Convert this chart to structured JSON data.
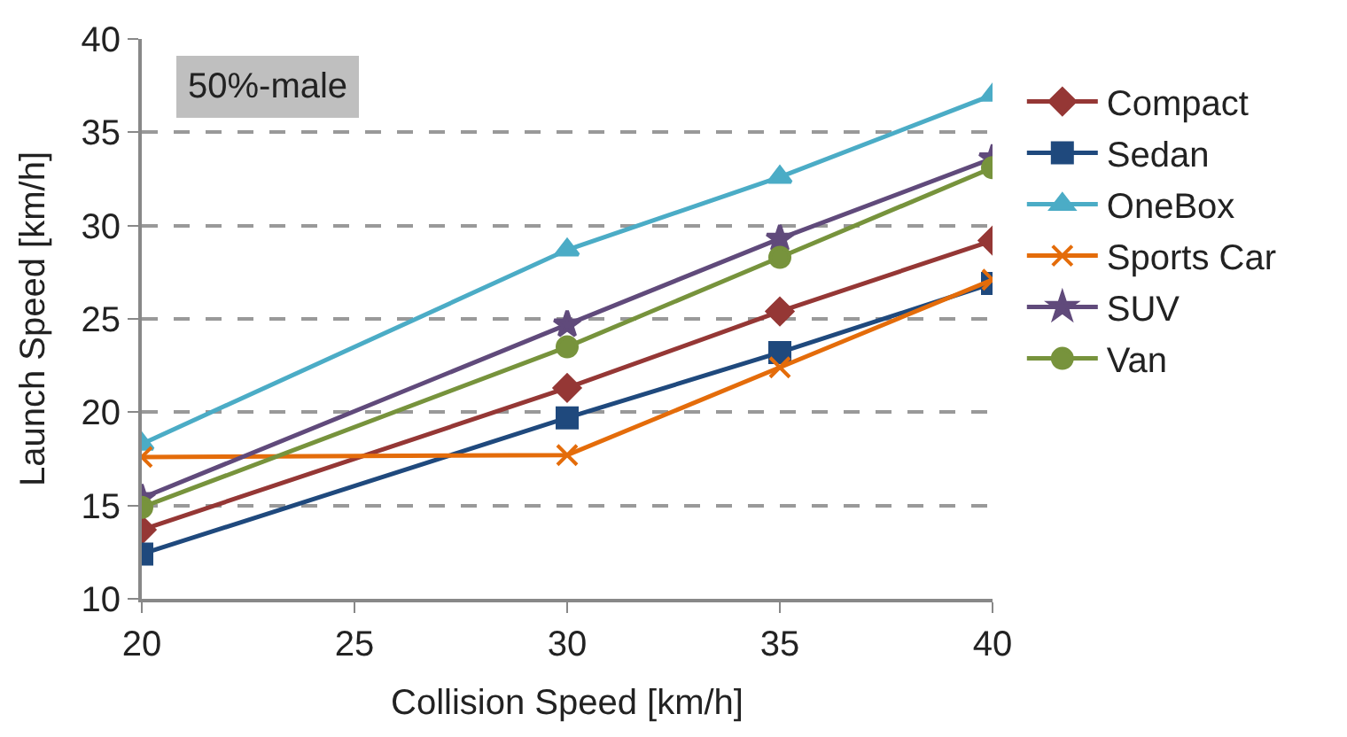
{
  "chart_data": {
    "type": "line",
    "xlabel": "Collision Speed [km/h]",
    "ylabel": "Launch Speed [km/h]",
    "x": [
      20,
      30,
      35,
      40
    ],
    "xlim": [
      20,
      40
    ],
    "xticks": [
      20,
      25,
      30,
      35,
      40
    ],
    "ylim": [
      10,
      40
    ],
    "yticks": [
      10,
      15,
      20,
      25,
      30,
      35,
      40
    ],
    "grid": "y",
    "legend": "right",
    "annotations": [
      "50%-male"
    ],
    "series": [
      {
        "name": "Compact",
        "color": "#953735",
        "marker": "diamond",
        "values": [
          13.7,
          21.3,
          25.4,
          29.2
        ]
      },
      {
        "name": "Sedan",
        "color": "#1f497d",
        "marker": "square",
        "values": [
          12.4,
          19.7,
          23.2,
          26.9
        ]
      },
      {
        "name": "OneBox",
        "color": "#4bacc6",
        "marker": "triangle",
        "values": [
          18.3,
          28.7,
          32.6,
          37.0
        ]
      },
      {
        "name": "Sports Car",
        "color": "#e46c0a",
        "marker": "cross",
        "values": [
          17.6,
          17.7,
          22.4,
          27.1
        ]
      },
      {
        "name": "SUV",
        "color": "#604a7b",
        "marker": "star",
        "values": [
          15.4,
          24.7,
          29.3,
          33.6
        ]
      },
      {
        "name": "Van",
        "color": "#77933c",
        "marker": "circle",
        "values": [
          14.9,
          23.5,
          28.3,
          33.1
        ]
      }
    ]
  }
}
